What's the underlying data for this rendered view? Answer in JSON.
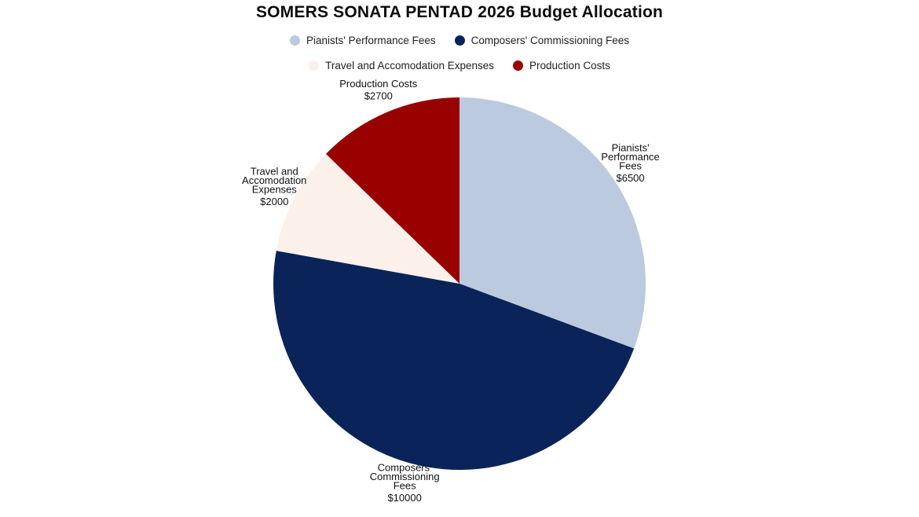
{
  "chart_data": {
    "type": "pie",
    "title": "SOMERS SONATA PENTAD 2026 Budget Allocation",
    "legend_position": "top",
    "currency_prefix": "$",
    "slices": [
      {
        "name": "Pianists' Performance Fees",
        "value": 6500,
        "color": "#bccadf",
        "label_lines": [
          "Pianists'",
          "Performance",
          "Fees"
        ],
        "value_label": "$6500"
      },
      {
        "name": "Composers' Commissioning Fees",
        "value": 10000,
        "color": "#0a2459",
        "label_lines": [
          "Composers'",
          "Commissioning",
          "Fees"
        ],
        "value_label": "$10000"
      },
      {
        "name": "Travel and Accomodation Expenses",
        "value": 2000,
        "color": "#fcf0eb",
        "label_lines": [
          "Travel and",
          "Accomodation",
          "Expenses"
        ],
        "value_label": "$2000"
      },
      {
        "name": "Production Costs",
        "value": 2700,
        "color": "#990000",
        "label_lines": [
          "Production Costs"
        ],
        "value_label": "$2700"
      }
    ]
  }
}
